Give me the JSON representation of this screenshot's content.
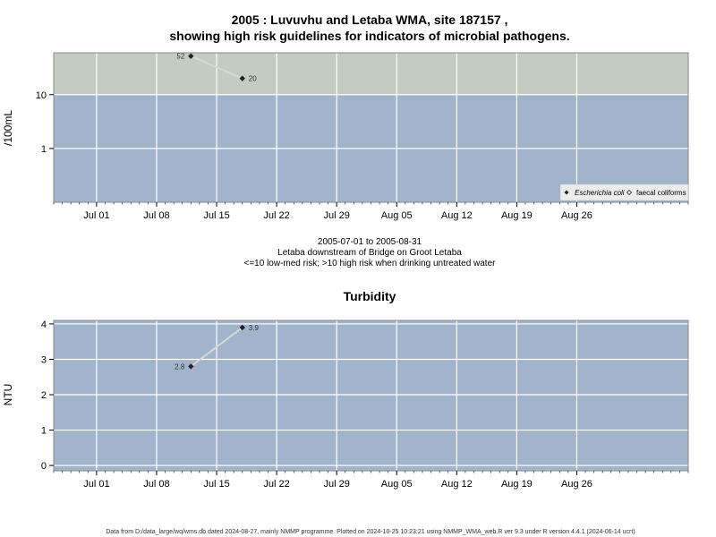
{
  "x_axis": {
    "range": [
      "2005-06-26",
      "2005-09-08"
    ],
    "ticks": [
      {
        "date": "2005-07-01",
        "label": "Jul 01"
      },
      {
        "date": "2005-07-08",
        "label": "Jul 08"
      },
      {
        "date": "2005-07-15",
        "label": "Jul 15"
      },
      {
        "date": "2005-07-22",
        "label": "Jul 22"
      },
      {
        "date": "2005-07-29",
        "label": "Jul 29"
      },
      {
        "date": "2005-08-05",
        "label": "Aug 05"
      },
      {
        "date": "2005-08-12",
        "label": "Aug 12"
      },
      {
        "date": "2005-08-19",
        "label": "Aug 19"
      },
      {
        "date": "2005-08-26",
        "label": "Aug 26"
      }
    ]
  },
  "chart_data": [
    {
      "type": "line",
      "title": "2005 : Luvuvhu and Letaba WMA, site 187157 ,",
      "subtitle": "showing high risk guidelines for indicators of microbial pathogens.",
      "ylabel": "/100mL",
      "yscale": "log",
      "ylim": [
        0.1,
        60
      ],
      "yticks": [
        1,
        10
      ],
      "grid": true,
      "bands": [
        {
          "from": 0.1,
          "to": 10,
          "color": "#a2b4cc",
          "meaning": "low-med risk"
        },
        {
          "from": 10,
          "to": 60,
          "color": "#c2ccc2",
          "meaning": "high risk"
        }
      ],
      "legend": {
        "placement": "bottom-right",
        "entries": [
          {
            "label": "Escherichia coli",
            "marker": "filled-diamond"
          },
          {
            "label": "faecal coliforms",
            "marker": "open-diamond"
          }
        ]
      },
      "series": [
        {
          "name": "Escherichia coli",
          "x": [
            "2005-07-12",
            "2005-07-18"
          ],
          "y": [
            52,
            20
          ],
          "labels": [
            "52",
            "20"
          ]
        }
      ],
      "notes": [
        "2005-07-01 to 2005-08-31",
        "Letaba downstream of Bridge on Groot Letaba",
        "<=10 low-med risk; >10 high risk when drinking untreated water"
      ]
    },
    {
      "type": "line",
      "title": "Turbidity",
      "ylabel": "NTU",
      "ylim": [
        -0.15,
        4.1
      ],
      "yticks": [
        0,
        1,
        2,
        3,
        4
      ],
      "grid": true,
      "background": "#a2b4cc",
      "series": [
        {
          "name": "Turbidity",
          "x": [
            "2005-07-12",
            "2005-07-18"
          ],
          "y": [
            2.8,
            3.9
          ],
          "labels": [
            "2.8",
            "3.9"
          ]
        }
      ]
    }
  ],
  "footer": "Data from D:/data_large/wq/wms.db dated 2024-08-27, mainly NMMP programme. Plotted on 2024-10-25 10:23:21 using NMMP_WMA_web.R ver 9.3 under R version 4.4.1 (2024-06-14 ucrt)"
}
